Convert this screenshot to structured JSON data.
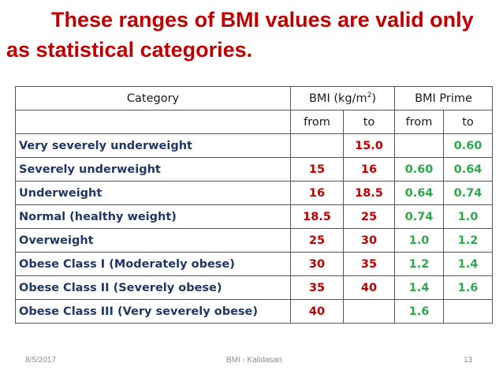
{
  "title": {
    "line1": "These ranges of BMI values are valid only",
    "line2": "as statistical categories."
  },
  "table": {
    "headers": {
      "category": "Category",
      "bmi_prefix": "BMI (kg/m",
      "bmi_sup": "2",
      "bmi_suffix": ")",
      "prime": "BMI Prime",
      "from": "from",
      "to": "to"
    },
    "rows": [
      {
        "category": "Very severely underweight",
        "bmi_from": "",
        "bmi_to": "15.0",
        "prime_from": "",
        "prime_to": "0.60"
      },
      {
        "category": "Severely underweight",
        "bmi_from": "15",
        "bmi_to": "16",
        "prime_from": "0.60",
        "prime_to": "0.64"
      },
      {
        "category": "Underweight",
        "bmi_from": "16",
        "bmi_to": "18.5",
        "prime_from": "0.64",
        "prime_to": "0.74"
      },
      {
        "category": "Normal (healthy weight)",
        "bmi_from": "18.5",
        "bmi_to": "25",
        "prime_from": "0.74",
        "prime_to": "1.0"
      },
      {
        "category": "Overweight",
        "bmi_from": "25",
        "bmi_to": "30",
        "prime_from": "1.0",
        "prime_to": "1.2"
      },
      {
        "category": "Obese Class I (Moderately obese)",
        "bmi_from": "30",
        "bmi_to": "35",
        "prime_from": "1.2",
        "prime_to": "1.4"
      },
      {
        "category": "Obese Class II (Severely obese)",
        "bmi_from": "35",
        "bmi_to": "40",
        "prime_from": "1.4",
        "prime_to": "1.6"
      },
      {
        "category": "Obese Class III (Very severely obese)",
        "bmi_from": "40",
        "bmi_to": "",
        "prime_from": "1.6",
        "prime_to": ""
      }
    ]
  },
  "footer": {
    "date": "8/5/2017",
    "center": "BMI - Kalidasan",
    "page": "13"
  },
  "colors": {
    "title": "#c00000",
    "category_text": "#1f3864",
    "bmi_values": "#c00000",
    "prime_values": "#2ea84a"
  }
}
